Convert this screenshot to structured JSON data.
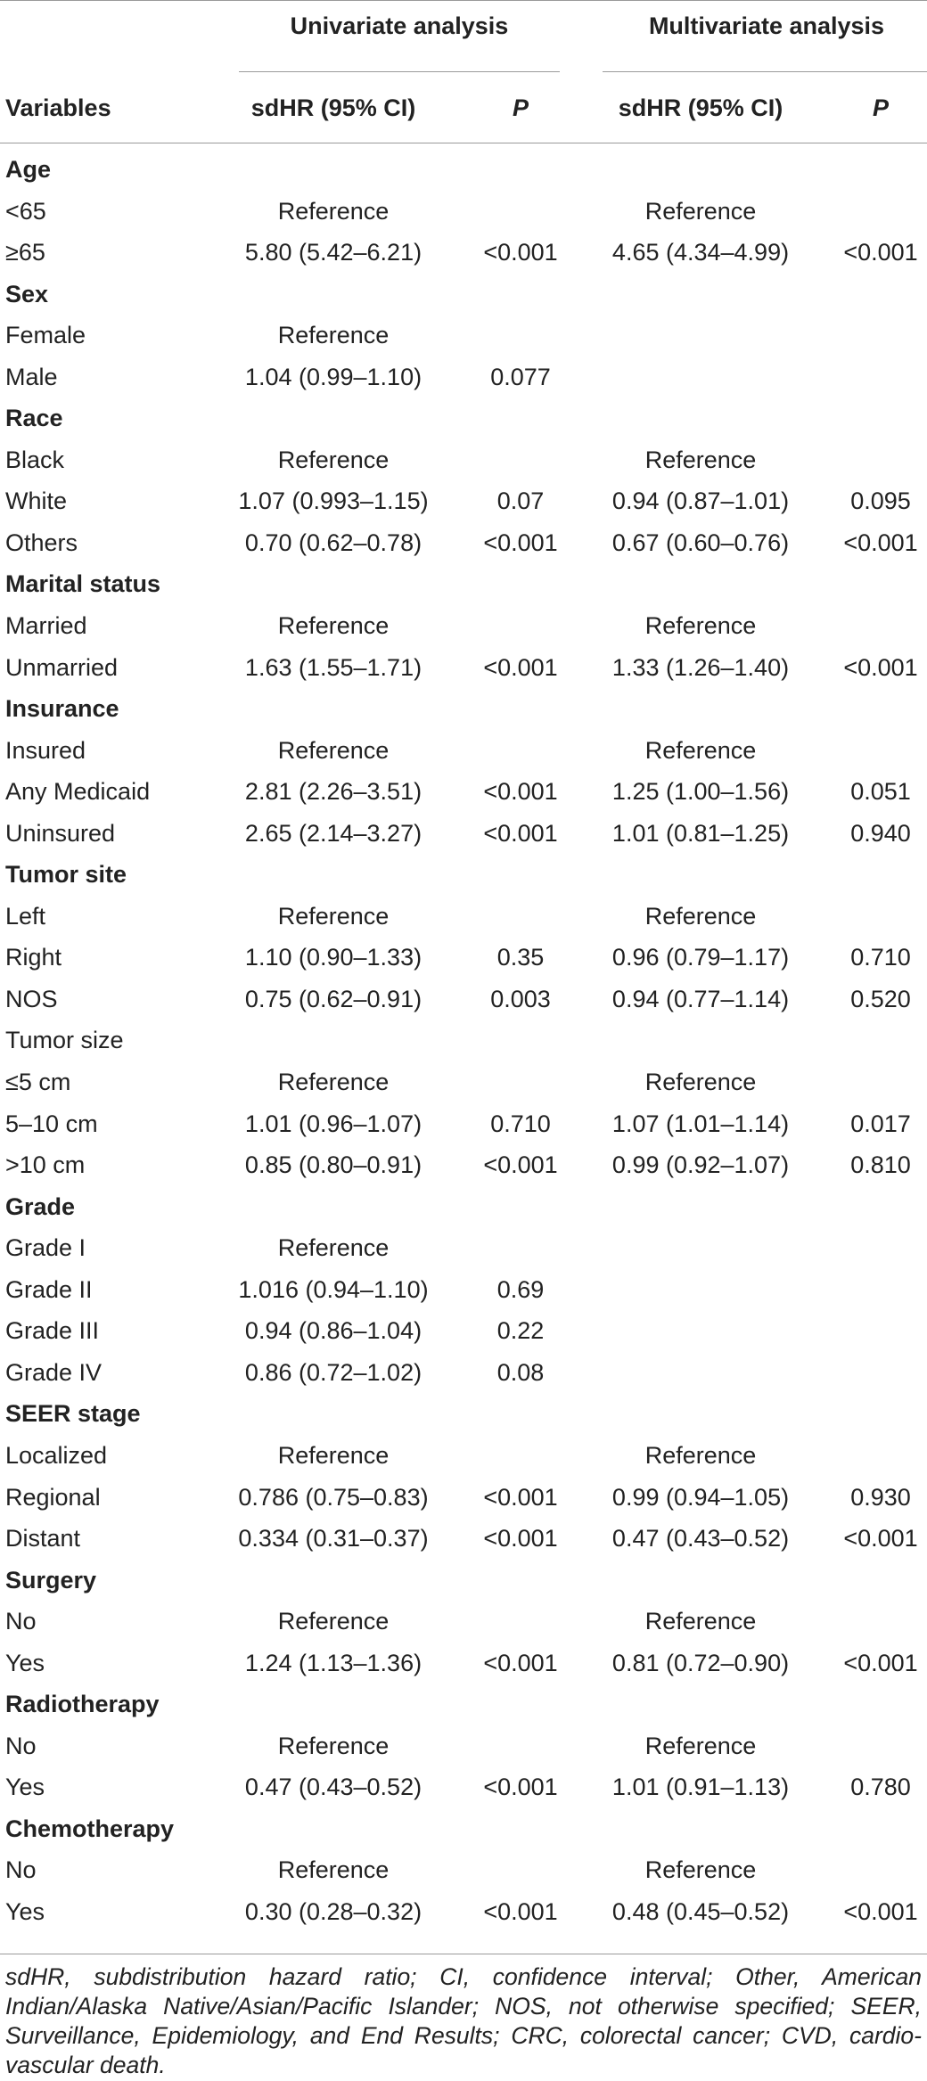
{
  "header": {
    "group_univariate": "Univariate analysis",
    "group_multivariate": "Multivariate analysis",
    "col_variables": "Variables",
    "col_uni_hr": "sdHR (95% CI)",
    "col_uni_p": "P",
    "col_multi_hr": "sdHR (95% CI)",
    "col_multi_p": "P"
  },
  "rows": [
    {
      "section": true,
      "label": "Age",
      "uhr": "",
      "up": "",
      "mhr": "",
      "mp": ""
    },
    {
      "section": false,
      "label": "<65",
      "uhr": "Reference",
      "up": "",
      "mhr": "Reference",
      "mp": ""
    },
    {
      "section": false,
      "label": "≥65",
      "uhr": "5.80 (5.42–6.21)",
      "up": "<0.001",
      "mhr": "4.65 (4.34–4.99)",
      "mp": "<0.001"
    },
    {
      "section": true,
      "label": "Sex",
      "uhr": "",
      "up": "",
      "mhr": "",
      "mp": ""
    },
    {
      "section": false,
      "label": "Female",
      "uhr": "Reference",
      "up": "",
      "mhr": "",
      "mp": ""
    },
    {
      "section": false,
      "label": "Male",
      "uhr": "1.04 (0.99–1.10)",
      "up": "0.077",
      "mhr": "",
      "mp": ""
    },
    {
      "section": true,
      "label": "Race",
      "uhr": "",
      "up": "",
      "mhr": "",
      "mp": ""
    },
    {
      "section": false,
      "label": "Black",
      "uhr": "Reference",
      "up": "",
      "mhr": "Reference",
      "mp": ""
    },
    {
      "section": false,
      "label": "White",
      "uhr": "1.07 (0.993–1.15)",
      "up": "0.07",
      "mhr": "0.94 (0.87–1.01)",
      "mp": "0.095"
    },
    {
      "section": false,
      "label": "Others",
      "uhr": "0.70 (0.62–0.78)",
      "up": "<0.001",
      "mhr": "0.67 (0.60–0.76)",
      "mp": "<0.001"
    },
    {
      "section": true,
      "label": "Marital status",
      "uhr": "",
      "up": "",
      "mhr": "",
      "mp": ""
    },
    {
      "section": false,
      "label": "Married",
      "uhr": "Reference",
      "up": "",
      "mhr": "Reference",
      "mp": ""
    },
    {
      "section": false,
      "label": "Unmarried",
      "uhr": "1.63 (1.55–1.71)",
      "up": "<0.001",
      "mhr": "1.33 (1.26–1.40)",
      "mp": "<0.001"
    },
    {
      "section": true,
      "label": "Insurance",
      "uhr": "",
      "up": "",
      "mhr": "",
      "mp": ""
    },
    {
      "section": false,
      "label": "Insured",
      "uhr": "Reference",
      "up": "",
      "mhr": "Reference",
      "mp": ""
    },
    {
      "section": false,
      "label": "Any Medicaid",
      "uhr": "2.81 (2.26–3.51)",
      "up": "<0.001",
      "mhr": "1.25 (1.00–1.56)",
      "mp": "0.051"
    },
    {
      "section": false,
      "label": "Uninsured",
      "uhr": "2.65 (2.14–3.27)",
      "up": "<0.001",
      "mhr": "1.01 (0.81–1.25)",
      "mp": "0.940"
    },
    {
      "section": true,
      "label": "Tumor site",
      "uhr": "",
      "up": "",
      "mhr": "",
      "mp": ""
    },
    {
      "section": false,
      "label": "Left",
      "uhr": "Reference",
      "up": "",
      "mhr": "Reference",
      "mp": ""
    },
    {
      "section": false,
      "label": "Right",
      "uhr": "1.10 (0.90–1.33)",
      "up": "0.35",
      "mhr": "0.96 (0.79–1.17)",
      "mp": "0.710"
    },
    {
      "section": false,
      "label": "NOS",
      "uhr": "0.75 (0.62–0.91)",
      "up": "0.003",
      "mhr": "0.94 (0.77–1.14)",
      "mp": "0.520"
    },
    {
      "section": false,
      "label": "Tumor size",
      "uhr": "",
      "up": "",
      "mhr": "",
      "mp": ""
    },
    {
      "section": false,
      "label": "≤5 cm",
      "uhr": "Reference",
      "up": "",
      "mhr": "Reference",
      "mp": ""
    },
    {
      "section": false,
      "label": "5–10 cm",
      "uhr": "1.01 (0.96–1.07)",
      "up": "0.710",
      "mhr": "1.07 (1.01–1.14)",
      "mp": "0.017"
    },
    {
      "section": false,
      "label": ">10 cm",
      "uhr": "0.85 (0.80–0.91)",
      "up": "<0.001",
      "mhr": "0.99 (0.92–1.07)",
      "mp": "0.810"
    },
    {
      "section": true,
      "label": "Grade",
      "uhr": "",
      "up": "",
      "mhr": "",
      "mp": ""
    },
    {
      "section": false,
      "label": "Grade I",
      "uhr": "Reference",
      "up": "",
      "mhr": "",
      "mp": ""
    },
    {
      "section": false,
      "label": "Grade II",
      "uhr": "1.016 (0.94–1.10)",
      "up": "0.69",
      "mhr": "",
      "mp": ""
    },
    {
      "section": false,
      "label": "Grade III",
      "uhr": "0.94 (0.86–1.04)",
      "up": "0.22",
      "mhr": "",
      "mp": ""
    },
    {
      "section": false,
      "label": "Grade IV",
      "uhr": "0.86 (0.72–1.02)",
      "up": "0.08",
      "mhr": "",
      "mp": ""
    },
    {
      "section": true,
      "label": "SEER stage",
      "uhr": "",
      "up": "",
      "mhr": "",
      "mp": ""
    },
    {
      "section": false,
      "label": "Localized",
      "uhr": "Reference",
      "up": "",
      "mhr": "Reference",
      "mp": ""
    },
    {
      "section": false,
      "label": "Regional",
      "uhr": "0.786 (0.75–0.83)",
      "up": "<0.001",
      "mhr": "0.99 (0.94–1.05)",
      "mp": "0.930"
    },
    {
      "section": false,
      "label": "Distant",
      "uhr": "0.334 (0.31–0.37)",
      "up": "<0.001",
      "mhr": "0.47 (0.43–0.52)",
      "mp": "<0.001"
    },
    {
      "section": true,
      "label": "Surgery",
      "uhr": "",
      "up": "",
      "mhr": "",
      "mp": ""
    },
    {
      "section": false,
      "label": "No",
      "uhr": "Reference",
      "up": "",
      "mhr": "Reference",
      "mp": ""
    },
    {
      "section": false,
      "label": "Yes",
      "uhr": "1.24 (1.13–1.36)",
      "up": "<0.001",
      "mhr": "0.81 (0.72–0.90)",
      "mp": "<0.001"
    },
    {
      "section": true,
      "label": "Radiotherapy",
      "uhr": "",
      "up": "",
      "mhr": "",
      "mp": ""
    },
    {
      "section": false,
      "label": "No",
      "uhr": "Reference",
      "up": "",
      "mhr": "Reference",
      "mp": ""
    },
    {
      "section": false,
      "label": "Yes",
      "uhr": "0.47 (0.43–0.52)",
      "up": "<0.001",
      "mhr": "1.01 (0.91–1.13)",
      "mp": "0.780"
    },
    {
      "section": true,
      "label": "Chemotherapy",
      "uhr": "",
      "up": "",
      "mhr": "",
      "mp": ""
    },
    {
      "section": false,
      "label": "No",
      "uhr": "Reference",
      "up": "",
      "mhr": "Reference",
      "mp": ""
    },
    {
      "section": false,
      "label": "Yes",
      "uhr": "0.30 (0.28–0.32)",
      "up": "<0.001",
      "mhr": "0.48 (0.45–0.52)",
      "mp": "<0.001"
    }
  ],
  "footnote": "sdHR, subdistribution hazard ratio; CI, confidence interval; Other, American Indian/Alaska Native/Asian/Pacific Islander; NOS, not otherwise specified; SEER, Surveillance, Epidemiology, and End Results; CRC, colorectal cancer; CVD, cardio-vascular death."
}
